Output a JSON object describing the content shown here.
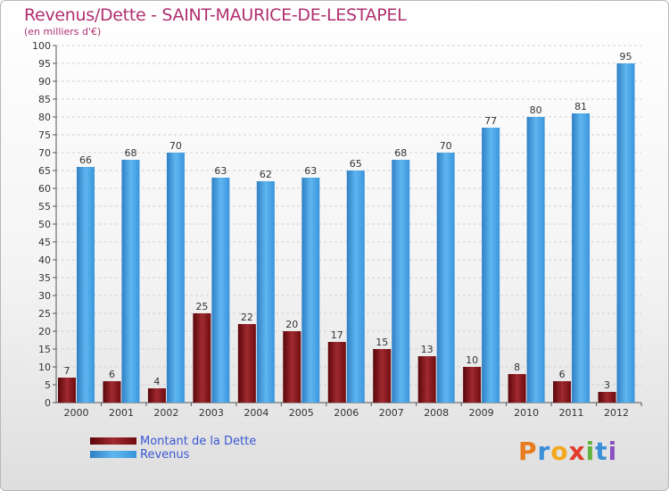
{
  "chart_data": {
    "type": "bar",
    "title": "Revenus/Dette - SAINT-MAURICE-DE-LESTAPEL",
    "subtitle": "(en milliers d'€)",
    "categories": [
      "2000",
      "2001",
      "2002",
      "2003",
      "2004",
      "2005",
      "2006",
      "2007",
      "2008",
      "2009",
      "2010",
      "2011",
      "2012"
    ],
    "series": [
      {
        "name": "Montant de la Dette",
        "color": "#7a0e12",
        "values": [
          7,
          6,
          4,
          25,
          22,
          20,
          17,
          15,
          13,
          10,
          8,
          6,
          3
        ]
      },
      {
        "name": "Revenus",
        "color": "#3d9de0",
        "values": [
          66,
          68,
          70,
          63,
          62,
          63,
          65,
          68,
          70,
          77,
          80,
          81,
          95
        ]
      }
    ],
    "ylim": [
      0,
      100
    ],
    "yticks": [
      0,
      5,
      10,
      15,
      20,
      25,
      30,
      35,
      40,
      45,
      50,
      55,
      60,
      65,
      70,
      75,
      80,
      85,
      90,
      95,
      100
    ],
    "grid": true,
    "legend": "bottom-left"
  },
  "logo": {
    "letters": [
      "P",
      "r",
      "o",
      "x",
      "i",
      "t",
      "i"
    ],
    "colors": [
      "#e87b1e",
      "#3a8fd8",
      "#f2a81d",
      "#e23c2c",
      "#63b33f",
      "#3a8fd8",
      "#8a4fc0"
    ]
  }
}
